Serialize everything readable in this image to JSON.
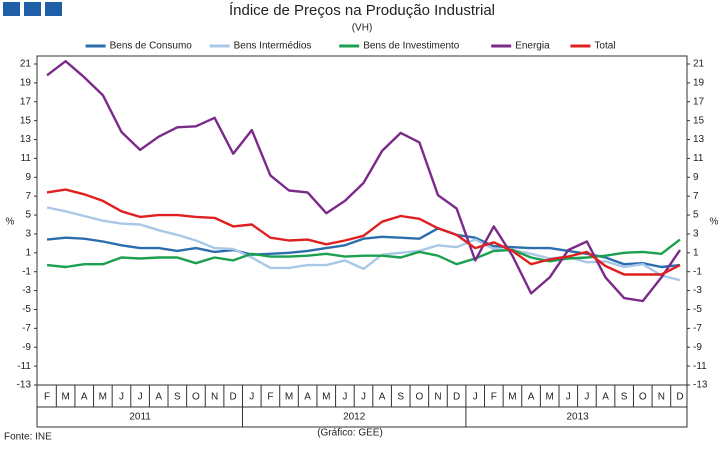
{
  "chart_data": {
    "type": "line",
    "title": "Índice de Preços na Produção Industrial",
    "subtitle": "(VH)",
    "y_label": "%",
    "y2_label": "%",
    "source": "Fonte: INE",
    "credit": "(Gráfico: GEE)",
    "categories": [
      "F",
      "M",
      "A",
      "M",
      "J",
      "J",
      "A",
      "S",
      "O",
      "N",
      "D",
      "J",
      "F",
      "M",
      "A",
      "M",
      "J",
      "J",
      "A",
      "S",
      "O",
      "N",
      "D",
      "J",
      "F",
      "M",
      "A",
      "M",
      "J",
      "J",
      "A",
      "S",
      "O",
      "N",
      "D"
    ],
    "years": [
      "2011",
      "2012",
      "2013"
    ],
    "ylim": [
      -13,
      21
    ],
    "yticks": [
      -13,
      -11,
      -9,
      -7,
      -5,
      -3,
      -1,
      1,
      3,
      5,
      7,
      9,
      11,
      13,
      15,
      17,
      19,
      21
    ],
    "grid": false,
    "legend": "top",
    "series": [
      {
        "name": "Bens de Consumo",
        "color": "#2a6ead",
        "values": [
          2.4,
          2.6,
          2.5,
          2.2,
          1.8,
          1.5,
          1.5,
          1.2,
          1.5,
          1.1,
          1.3,
          0.8,
          0.9,
          1.0,
          1.2,
          1.5,
          1.8,
          2.5,
          2.7,
          2.6,
          2.5,
          3.6,
          2.9,
          2.6,
          1.7,
          1.6,
          1.5,
          1.5,
          1.2,
          0.9,
          0.5,
          -0.2,
          -0.1,
          -0.5,
          -0.3
        ]
      },
      {
        "name": "Bens Intermédios",
        "color": "#a9c8e8",
        "values": [
          5.8,
          5.4,
          4.9,
          4.4,
          4.1,
          4.0,
          3.4,
          2.9,
          2.3,
          1.5,
          1.4,
          0.5,
          -0.6,
          -0.6,
          -0.3,
          -0.3,
          0.2,
          -0.7,
          0.8,
          1.0,
          1.2,
          1.8,
          1.6,
          2.4,
          1.4,
          1.3,
          0.9,
          0.4,
          0.6,
          0.0,
          0.1,
          -0.5,
          -0.2,
          -1.4,
          -1.9
        ]
      },
      {
        "name": "Bens de Investimento",
        "color": "#1aa04f",
        "values": [
          -0.3,
          -0.5,
          -0.2,
          -0.2,
          0.5,
          0.4,
          0.5,
          0.5,
          -0.1,
          0.5,
          0.2,
          0.9,
          0.6,
          0.6,
          0.7,
          0.9,
          0.6,
          0.7,
          0.7,
          0.5,
          1.1,
          0.7,
          -0.2,
          0.4,
          1.2,
          1.3,
          0.5,
          0.1,
          0.4,
          0.5,
          0.7,
          1.0,
          1.1,
          0.9,
          2.4
        ]
      },
      {
        "name": "Energia",
        "color": "#7b2a8a",
        "values": [
          19.8,
          21.3,
          19.6,
          17.7,
          13.8,
          11.9,
          13.3,
          14.3,
          14.4,
          15.3,
          11.5,
          14.0,
          9.2,
          7.6,
          7.4,
          5.2,
          6.5,
          8.4,
          11.8,
          13.7,
          12.7,
          7.1,
          5.7,
          0.2,
          3.8,
          0.7,
          -3.3,
          -1.6,
          1.3,
          2.2,
          -1.6,
          -3.8,
          -4.1,
          -1.6,
          1.3
        ]
      },
      {
        "name": "Total",
        "color": "#e02020",
        "values": [
          7.4,
          7.7,
          7.2,
          6.5,
          5.4,
          4.8,
          5.0,
          5.0,
          4.8,
          4.7,
          3.8,
          4.0,
          2.6,
          2.3,
          2.4,
          1.9,
          2.3,
          2.8,
          4.3,
          4.9,
          4.6,
          3.6,
          2.9,
          1.5,
          2.1,
          1.2,
          -0.2,
          0.3,
          0.6,
          1.1,
          -0.4,
          -1.3,
          -1.3,
          -1.3,
          -0.3
        ]
      }
    ]
  }
}
